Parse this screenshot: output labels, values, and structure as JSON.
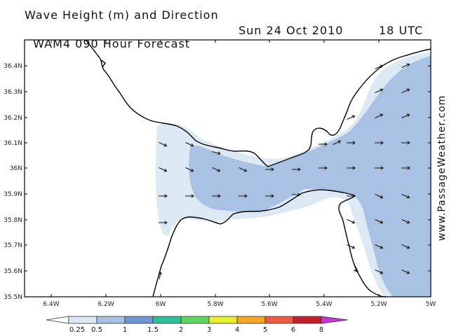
{
  "title": {
    "line1": "Wave Height (m) and Direction",
    "line2_model": "WAM4 090 Hour Forecast",
    "line2_date": "Sun 24 Oct 2010",
    "line2_time": "18 UTC"
  },
  "watermark": "www.PassageWeather.com",
  "axes": {
    "lat_ticks": [
      "36.4N",
      "36.3N",
      "36.2N",
      "36.1N",
      "36N",
      "35.9N",
      "35.8N",
      "35.7N",
      "35.6N",
      "35.5N"
    ],
    "lon_ticks": [
      "6.4W",
      "6.2W",
      "6W",
      "5.8W",
      "5.6W",
      "5.4W",
      "5.2W",
      "5W"
    ]
  },
  "colorbar": {
    "labels": [
      "0.25",
      "0.5",
      "1",
      "1.5",
      "2",
      "3",
      "4",
      "5",
      "6",
      "8"
    ],
    "colors": [
      "#dde8f5",
      "#a9c2e3",
      "#6f97d3",
      "#2fbf98",
      "#5fd65f",
      "#e8ee30",
      "#f5a623",
      "#ee5b45",
      "#c21f2a",
      "#c634d6"
    ]
  },
  "map_colors": {
    "light": "#dde8f5",
    "medium": "#a9c2e3",
    "coast": "#000000"
  }
}
